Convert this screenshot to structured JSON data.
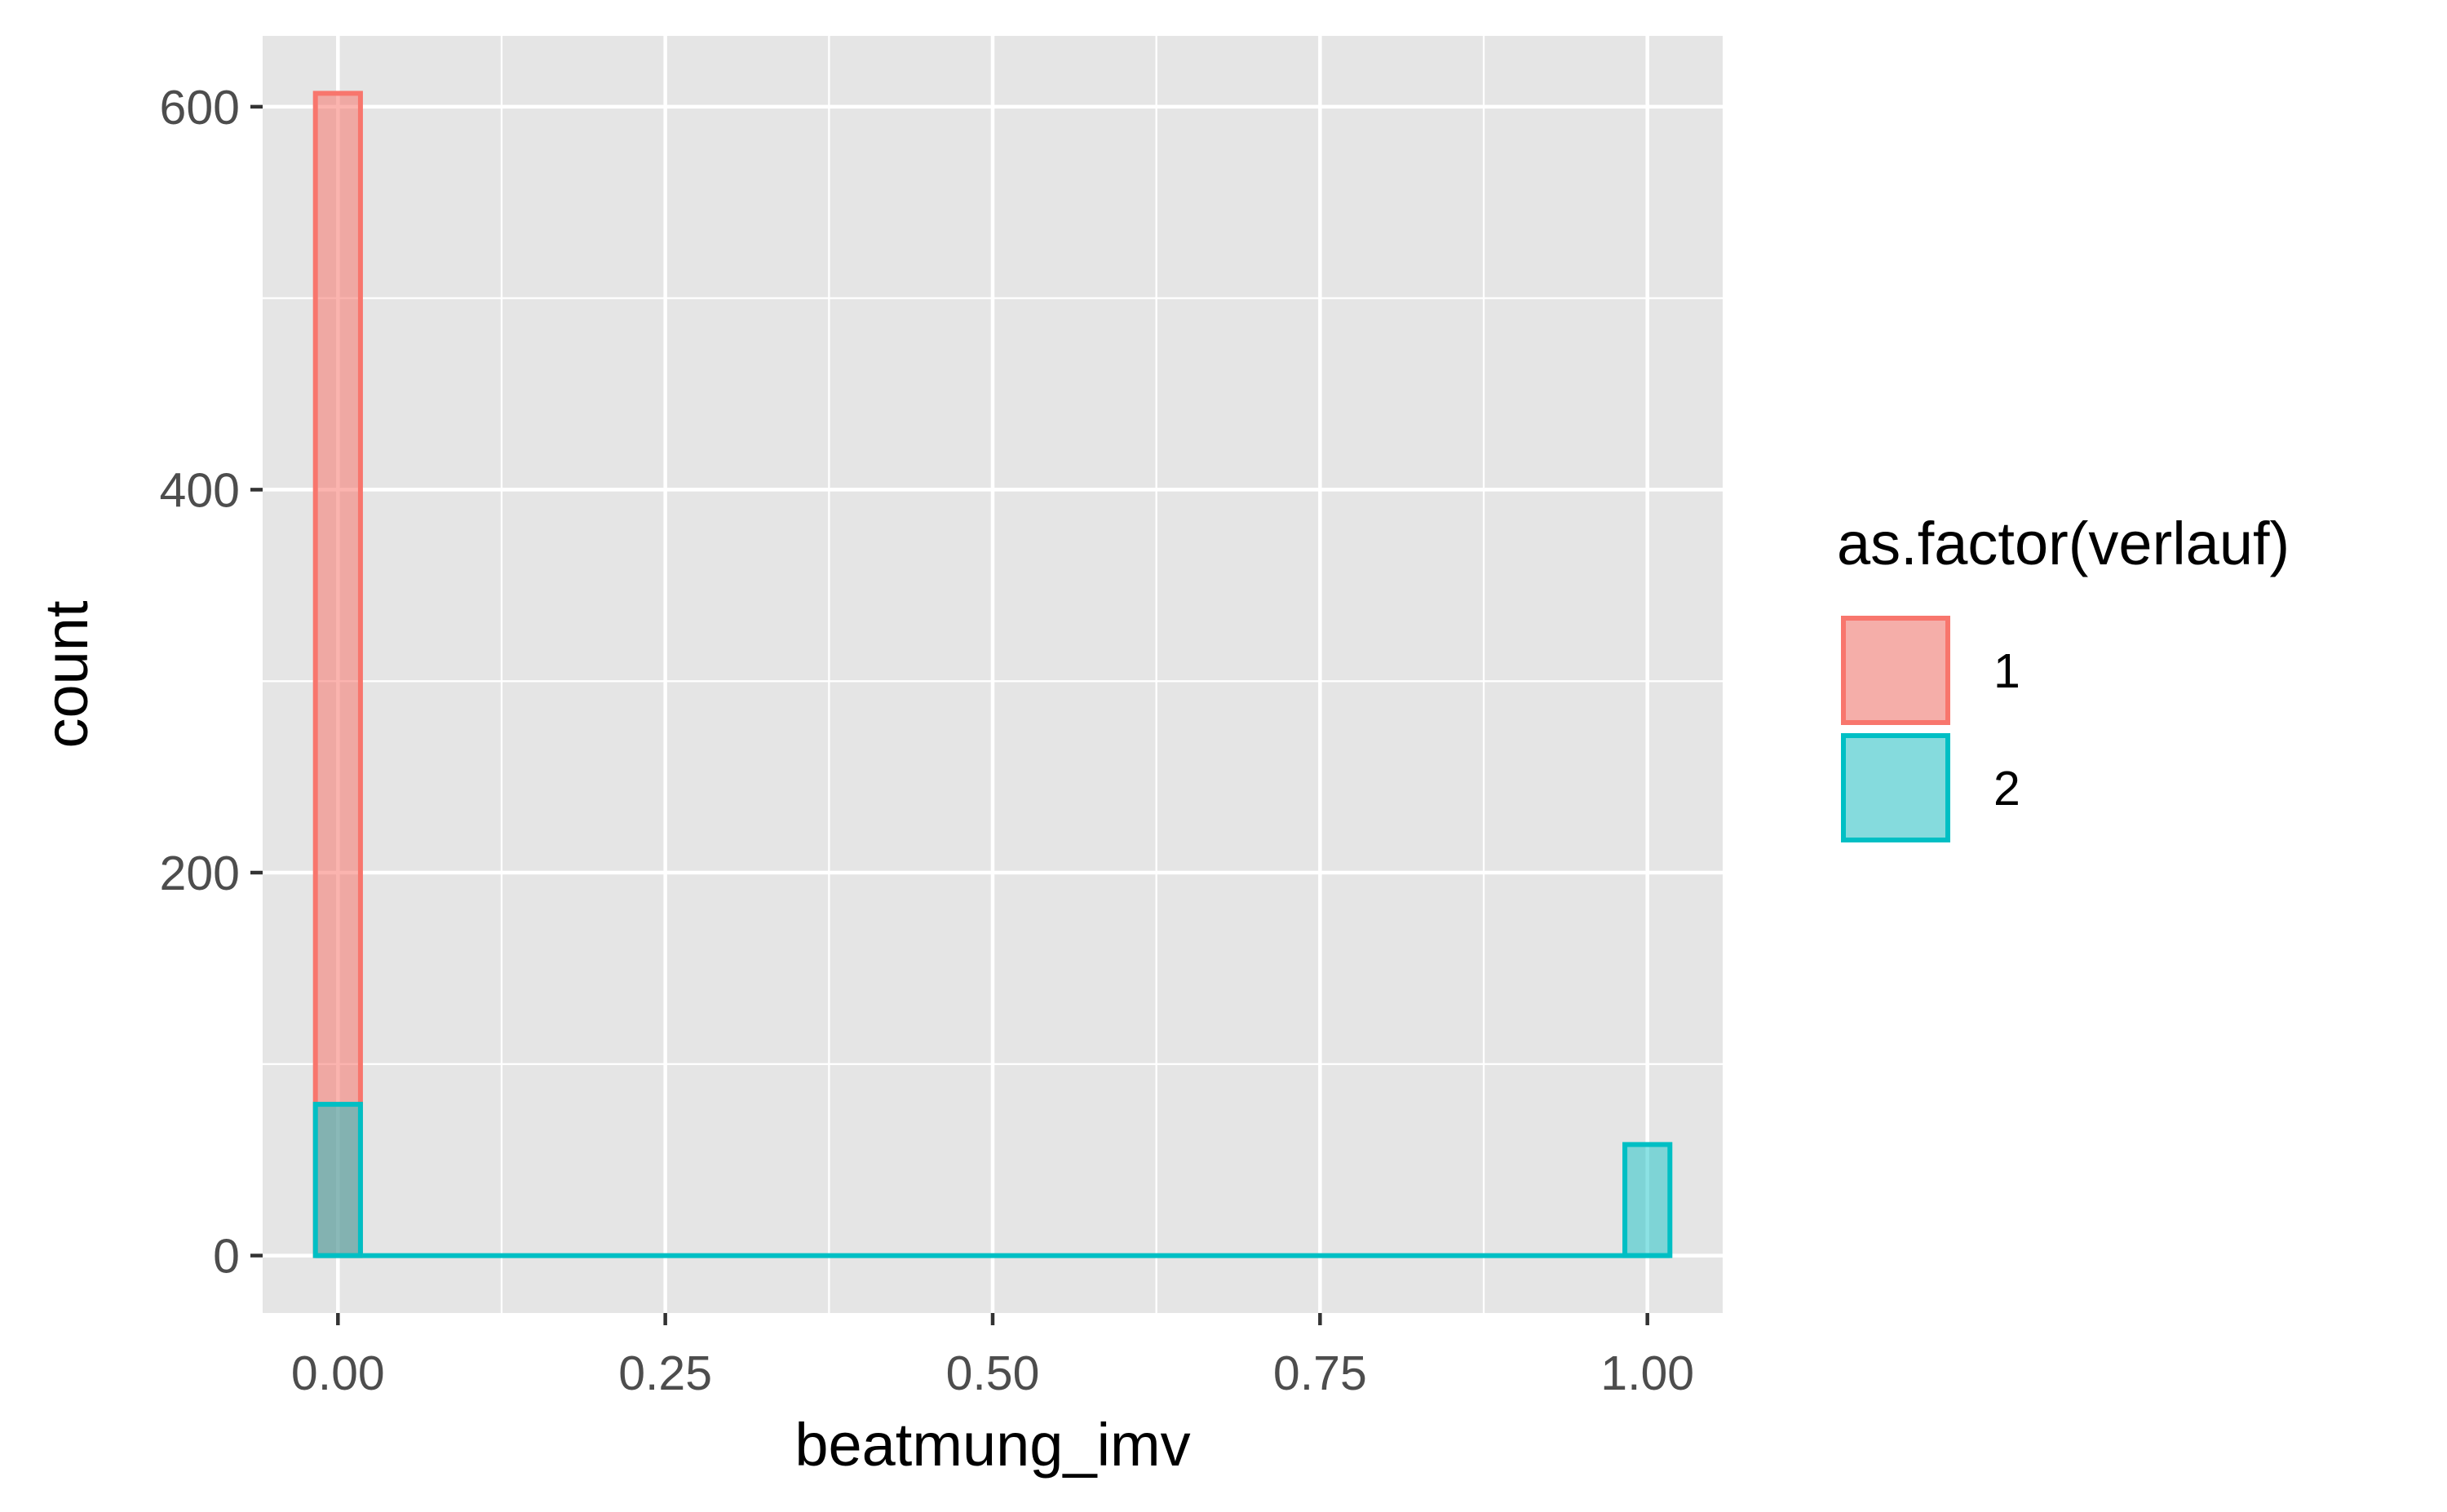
{
  "chart_data": {
    "type": "bar",
    "xlabel": "beatmung_imv",
    "ylabel": "count",
    "xlim": [
      -0.0575,
      1.0575
    ],
    "ylim": [
      -30,
      637
    ],
    "x_ticks": [
      0,
      0.25,
      0.5,
      0.75,
      1
    ],
    "x_tick_labels": [
      "0.00",
      "0.25",
      "0.50",
      "0.75",
      "1.00"
    ],
    "y_ticks": [
      0,
      200,
      400,
      600
    ],
    "y_tick_labels": [
      "0",
      "200",
      "400",
      "600"
    ],
    "grid": true,
    "background": "#E5E5E5",
    "legend_position": "right",
    "legend_title": "as.factor(verlauf)",
    "series": [
      {
        "name": "1",
        "color": "#F8766D",
        "fill": "rgba(248,118,109,0.55)",
        "bars": [
          {
            "x_start": -0.0172,
            "x_end": 0.0172,
            "count": 607
          }
        ]
      },
      {
        "name": "2",
        "color": "#00BFC4",
        "fill": "rgba(0,191,196,0.45)",
        "bars": [
          {
            "x_start": -0.0172,
            "x_end": 0.0172,
            "count": 79
          },
          {
            "x_start": 0.9828,
            "x_end": 1.0172,
            "count": 58
          }
        ]
      }
    ],
    "baseline": {
      "x_start": -0.0172,
      "x_end": 1.0172,
      "count": 0
    }
  }
}
